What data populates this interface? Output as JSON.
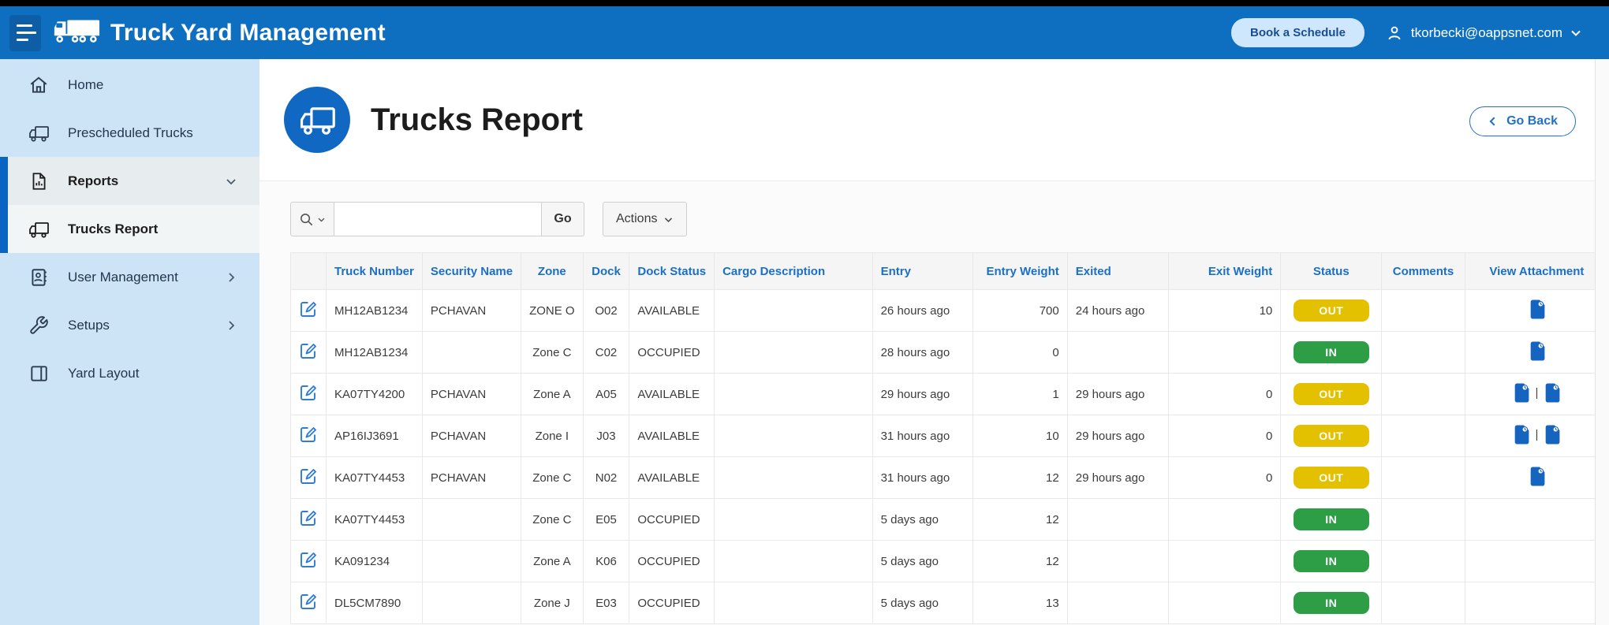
{
  "header": {
    "app_title": "Truck Yard Management",
    "book_schedule_label": "Book a Schedule",
    "user_email": "tkorbecki@oappsnet.com"
  },
  "sidebar": {
    "items": [
      {
        "label": "Home",
        "icon": "home-icon",
        "active": false
      },
      {
        "label": "Prescheduled Trucks",
        "icon": "truck-icon",
        "active": false
      },
      {
        "label": "Reports",
        "icon": "report-icon",
        "expanded": true,
        "chevron": "down",
        "active": true
      },
      {
        "label": "Trucks Report",
        "icon": "truck-icon",
        "sub_item": true,
        "active": true
      },
      {
        "label": "User Management",
        "icon": "contacts-icon",
        "chevron": "right",
        "active": false
      },
      {
        "label": "Setups",
        "icon": "wrench-icon",
        "chevron": "right",
        "active": false
      },
      {
        "label": "Yard Layout",
        "icon": "layout-icon",
        "active": false
      }
    ]
  },
  "page": {
    "title": "Trucks Report",
    "go_back_label": "Go Back"
  },
  "toolbar": {
    "search_value": "",
    "search_placeholder": "",
    "go_label": "Go",
    "actions_label": "Actions"
  },
  "table": {
    "columns": [
      "",
      "Truck Number",
      "Security Name",
      "Zone",
      "Dock",
      "Dock Status",
      "Cargo Description",
      "Entry",
      "Entry Weight",
      "Exited",
      "Exit Weight",
      "Status",
      "Comments",
      "View Attachment"
    ],
    "rows": [
      {
        "truck_number": "MH12AB1234",
        "security_name": "PCHAVAN",
        "zone": "ZONE O",
        "dock": "O02",
        "dock_status": "AVAILABLE",
        "cargo_description": "",
        "entry": "26 hours ago",
        "entry_weight": "700",
        "exited": "24 hours ago",
        "exit_weight": "10",
        "status": "OUT",
        "comments": "",
        "attachments": 1
      },
      {
        "truck_number": "MH12AB1234",
        "security_name": "",
        "zone": "Zone C",
        "dock": "C02",
        "dock_status": "OCCUPIED",
        "cargo_description": "",
        "entry": "28 hours ago",
        "entry_weight": "0",
        "exited": "",
        "exit_weight": "",
        "status": "IN",
        "comments": "",
        "attachments": 1
      },
      {
        "truck_number": "KA07TY4200",
        "security_name": "PCHAVAN",
        "zone": "Zone A",
        "dock": "A05",
        "dock_status": "AVAILABLE",
        "cargo_description": "",
        "entry": "29 hours ago",
        "entry_weight": "1",
        "exited": "29 hours ago",
        "exit_weight": "0",
        "status": "OUT",
        "comments": "",
        "attachments": 2
      },
      {
        "truck_number": "AP16IJ3691",
        "security_name": "PCHAVAN",
        "zone": "Zone I",
        "dock": "J03",
        "dock_status": "AVAILABLE",
        "cargo_description": "",
        "entry": "31 hours ago",
        "entry_weight": "10",
        "exited": "29 hours ago",
        "exit_weight": "0",
        "status": "OUT",
        "comments": "",
        "attachments": 2
      },
      {
        "truck_number": "KA07TY4453",
        "security_name": "PCHAVAN",
        "zone": "Zone C",
        "dock": "N02",
        "dock_status": "AVAILABLE",
        "cargo_description": "",
        "entry": "31 hours ago",
        "entry_weight": "12",
        "exited": "29 hours ago",
        "exit_weight": "0",
        "status": "OUT",
        "comments": "",
        "attachments": 1
      },
      {
        "truck_number": "KA07TY4453",
        "security_name": "",
        "zone": "Zone C",
        "dock": "E05",
        "dock_status": "OCCUPIED",
        "cargo_description": "",
        "entry": "5 days ago",
        "entry_weight": "12",
        "exited": "",
        "exit_weight": "",
        "status": "IN",
        "comments": "",
        "attachments": 0
      },
      {
        "truck_number": "KA091234",
        "security_name": "",
        "zone": "Zone A",
        "dock": "K06",
        "dock_status": "OCCUPIED",
        "cargo_description": "",
        "entry": "5 days ago",
        "entry_weight": "12",
        "exited": "",
        "exit_weight": "",
        "status": "IN",
        "comments": "",
        "attachments": 0
      },
      {
        "truck_number": "DL5CM7890",
        "security_name": "",
        "zone": "Zone J",
        "dock": "E03",
        "dock_status": "OCCUPIED",
        "cargo_description": "",
        "entry": "5 days ago",
        "entry_weight": "13",
        "exited": "",
        "exit_weight": "",
        "status": "IN",
        "comments": "",
        "attachments": 0
      }
    ]
  },
  "colors": {
    "header_blue": "#0e6fc1",
    "sidebar_blue": "#cde4f6",
    "accent_bar_blue": "#0a65c2",
    "table_header_text": "#1a6fc8",
    "status_in_green": "#2d9e46",
    "status_out_yellow": "#e3c000",
    "attachment_blue": "#1565c0"
  }
}
